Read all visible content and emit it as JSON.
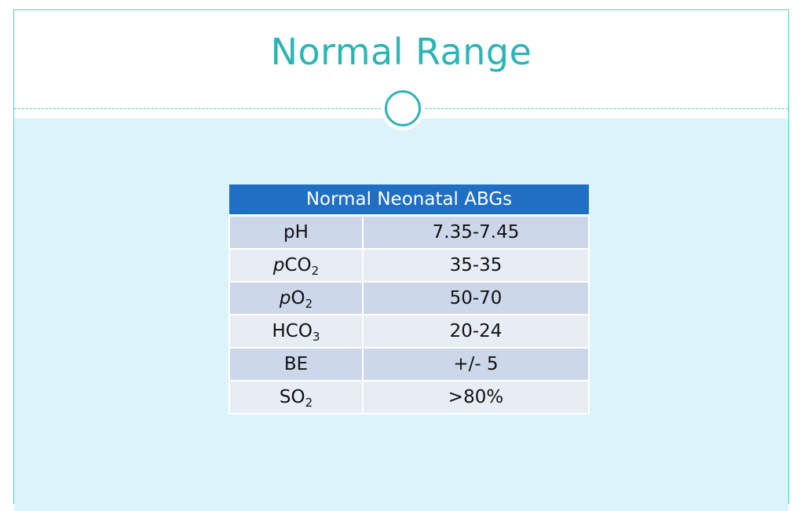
{
  "slide": {
    "title": "Normal Range"
  },
  "table": {
    "header": "Normal Neonatal ABGs",
    "rows": [
      {
        "prefix": "",
        "base": "pH",
        "sub": "",
        "value": "7.35-7.45"
      },
      {
        "prefix": "p",
        "base": "CO",
        "sub": "2",
        "value": "35-35"
      },
      {
        "prefix": "p",
        "base": "O",
        "sub": "2",
        "value": "50-70"
      },
      {
        "prefix": "",
        "base": "HCO",
        "sub": "3",
        "value": "20-24"
      },
      {
        "prefix": "",
        "base": "BE",
        "sub": "",
        "value": "+/- 5"
      },
      {
        "prefix": "",
        "base": "SO",
        "sub": "2",
        "value": ">80%"
      }
    ]
  },
  "colors": {
    "title": "#2bb5b5",
    "background": "#dcf3f9",
    "header": "#1f6fc5",
    "row_dark": "#cdd7ea",
    "row_light": "#e7ecf5"
  }
}
